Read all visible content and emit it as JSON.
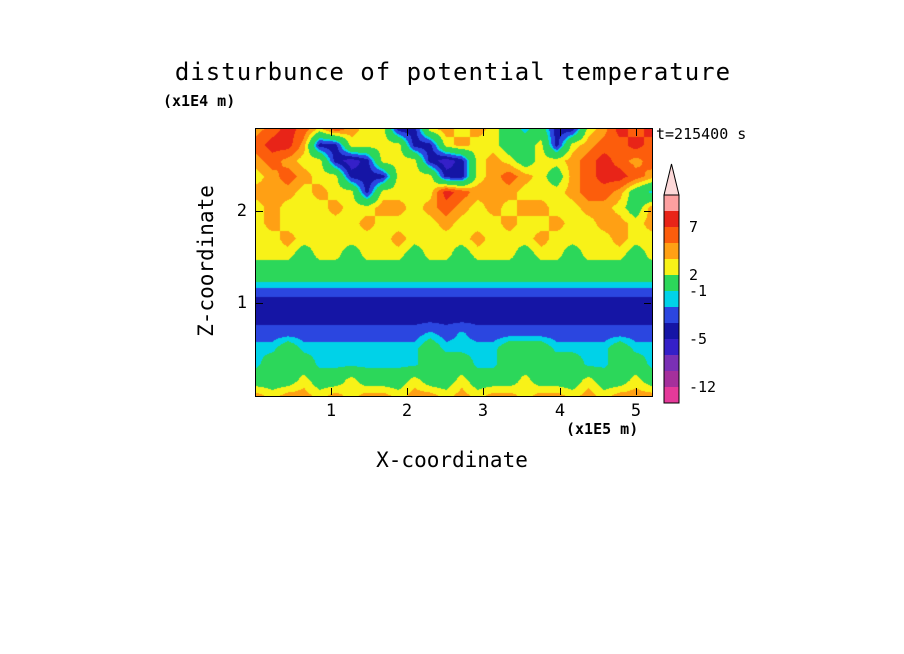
{
  "title": "disturbunce of potential temperature",
  "timestamp": "t=215400 s",
  "axes": {
    "x_label": "X-coordinate",
    "x_unit": "(x1E5 m)",
    "y_label": "Z-coordinate",
    "y_unit": "(x1E4 m)",
    "x_tick_labels": [
      "1",
      "2",
      "3",
      "4",
      "5"
    ],
    "x_tick_values": [
      1,
      2,
      3,
      4,
      5
    ],
    "y_tick_labels": [
      "1",
      "2"
    ],
    "y_tick_values": [
      1,
      2
    ]
  },
  "colorbar": {
    "labeled_levels": [
      7,
      2,
      -1,
      -5,
      -12
    ],
    "tip_color": "#fdd8d8"
  },
  "chart_data": {
    "type": "heatmap",
    "title": "disturbunce of potential temperature",
    "xlabel": "X-coordinate (x1E5 m)",
    "ylabel": "Z-coordinate (x1E4 m)",
    "x_range": [
      0,
      5.2
    ],
    "z_range": [
      0,
      2.9
    ],
    "levels": [
      -12,
      -9,
      -7,
      -5,
      -3.5,
      -2,
      -1,
      2,
      3.5,
      5,
      7,
      9
    ],
    "colors": [
      "#e53a9a",
      "#a5309c",
      "#7a30b5",
      "#3520c8",
      "#1515a5",
      "#2b46e0",
      "#00d2e8",
      "#2cd75a",
      "#f8f218",
      "#ffa014",
      "#fc5d0c",
      "#e82418",
      "#fda0a0"
    ],
    "grid": [
      [
        4.2,
        6,
        8,
        6,
        2.8,
        6,
        4.2,
        2.8,
        2.8,
        -4.3,
        -4.3,
        2.8,
        4.2,
        2.8,
        4.2,
        2.8,
        0.5,
        -1.5,
        0.5,
        -4.3,
        -4.3,
        2.8,
        4.2,
        8,
        6,
        8
      ],
      [
        6,
        8,
        8,
        4.2,
        -4.3,
        -4.3,
        2.8,
        2.8,
        2.8,
        2.8,
        -4.3,
        -4.3,
        2.8,
        4.2,
        2.8,
        2.8,
        0.5,
        0.5,
        2.8,
        -4.3,
        2.8,
        4.2,
        6,
        6,
        8,
        6
      ],
      [
        4.2,
        6,
        4.2,
        2.8,
        2.8,
        -4.3,
        -6,
        -4.3,
        2.8,
        2.8,
        2.8,
        -4.3,
        -6,
        -4.3,
        2.8,
        4.2,
        2.8,
        0.5,
        2.8,
        2.8,
        4.2,
        6,
        8,
        6,
        4.2,
        6
      ],
      [
        2.8,
        4.2,
        6,
        4.2,
        2.8,
        2.8,
        -4.3,
        -4.3,
        -4.3,
        2.8,
        2.8,
        2.8,
        -4.3,
        -4.3,
        2.8,
        4.2,
        6,
        4.2,
        2.8,
        0.5,
        4.2,
        6,
        8,
        8,
        6,
        4.2
      ],
      [
        4.2,
        4.2,
        4.2,
        2.8,
        4.2,
        2.8,
        2.8,
        -4.3,
        2.8,
        2.8,
        2.8,
        2.8,
        8,
        6,
        4.2,
        4.2,
        4.2,
        2.8,
        2.8,
        2.8,
        4.2,
        6,
        6,
        4.2,
        0.5,
        -1.5
      ],
      [
        2.8,
        4.2,
        2.8,
        2.8,
        2.8,
        4.2,
        2.8,
        2.8,
        4.2,
        4.2,
        2.8,
        4.2,
        6,
        4.2,
        2.8,
        4.2,
        2.8,
        4.2,
        4.2,
        2.8,
        2.8,
        4.2,
        4.2,
        2.8,
        0.5,
        4.2
      ],
      [
        2.8,
        4.2,
        2.8,
        2.8,
        2.8,
        2.8,
        2.8,
        4.2,
        2.8,
        2.8,
        2.8,
        2.8,
        4.2,
        2.8,
        2.8,
        2.8,
        4.2,
        2.8,
        2.8,
        4.2,
        2.8,
        2.8,
        4.2,
        4.2,
        2.8,
        4.2
      ],
      [
        2.8,
        2.8,
        4.2,
        2.8,
        2.8,
        2.8,
        2.8,
        2.8,
        2.8,
        4.2,
        2.8,
        2.8,
        2.8,
        2.8,
        4.2,
        2.8,
        2.8,
        2.8,
        4.2,
        2.8,
        2.8,
        2.8,
        2.8,
        4.2,
        2.8,
        2.8
      ],
      [
        2.8,
        2.8,
        2.8,
        0.5,
        2.8,
        2.8,
        0.5,
        2.8,
        2.8,
        2.8,
        0.5,
        2.8,
        2.8,
        0.5,
        2.8,
        2.8,
        2.8,
        0.5,
        2.8,
        2.8,
        0.5,
        2.8,
        2.8,
        2.8,
        0.5,
        2.8
      ],
      [
        0.5,
        0.5,
        0.5,
        0.5,
        0.5,
        0.5,
        0.5,
        0.5,
        0.5,
        0.5,
        0.5,
        0.5,
        0.5,
        0.5,
        0.5,
        0.5,
        0.5,
        0.5,
        0.5,
        0.5,
        0.5,
        0.5,
        0.5,
        0.5,
        0.5,
        0.5
      ],
      [
        -1.6,
        -1.6,
        -1.6,
        -1.6,
        -1.6,
        -1.6,
        -1.6,
        -1.6,
        -1.6,
        -1.6,
        -1.6,
        -1.6,
        -1.6,
        -1.6,
        -1.6,
        -1.6,
        -1.6,
        -1.6,
        -1.6,
        -1.6,
        -1.6,
        -1.6,
        -1.6,
        -1.6,
        -1.6,
        -1.6
      ],
      [
        -4.3,
        -4.3,
        -4.3,
        -4.3,
        -4.3,
        -4.3,
        -4.3,
        -4.3,
        -4.3,
        -4.3,
        -4.3,
        -4.3,
        -4.3,
        -4.3,
        -4.3,
        -4.3,
        -4.3,
        -4.3,
        -4.3,
        -4.3,
        -4.3,
        -4.3,
        -4.3,
        -4.3,
        -4.3,
        -4.3
      ],
      [
        -4.3,
        -4.3,
        -4.3,
        -4.3,
        -4.3,
        -4.3,
        -4.3,
        -4.3,
        -4.3,
        -4.3,
        -4.3,
        -4.3,
        -4.3,
        -4.3,
        -4.3,
        -4.3,
        -4.3,
        -4.3,
        -4.3,
        -4.3,
        -4.3,
        -4.3,
        -4.3,
        -4.3,
        -4.3,
        -4.3
      ],
      [
        -2.7,
        -2.7,
        -2.7,
        -2.7,
        -2.7,
        -2.7,
        -2.7,
        -2.7,
        -2.7,
        -2.7,
        -2.7,
        -1.8,
        -2.7,
        -1.8,
        -2.7,
        -2.7,
        -2.7,
        -2.7,
        -2.7,
        -2.7,
        -2.7,
        -2.7,
        -2.7,
        -2.7,
        -2.7,
        -2.7
      ],
      [
        -1.5,
        -1.5,
        0.5,
        -1.5,
        -1.5,
        -1.5,
        -1.5,
        -1.5,
        -1.5,
        -1.5,
        -1.5,
        0.5,
        -1.5,
        -1.5,
        -1.5,
        -1.5,
        0.5,
        0.5,
        0.5,
        -1.5,
        -1.5,
        -1.5,
        -1.5,
        0.5,
        -1.5,
        -1.5
      ],
      [
        -1.5,
        0.5,
        0.5,
        0.5,
        -1.5,
        -1.5,
        -1.5,
        -1.5,
        -1.5,
        -1.5,
        -1.5,
        0.5,
        0.5,
        0.5,
        -1.5,
        -1.5,
        0.5,
        0.5,
        0.5,
        0.5,
        0.5,
        -1.5,
        -1.5,
        0.5,
        0.5,
        -1.5
      ],
      [
        0.5,
        0.5,
        0.5,
        2.8,
        0.5,
        0.5,
        2.8,
        0.5,
        0.5,
        0.5,
        2.8,
        0.5,
        0.5,
        2.8,
        0.5,
        0.5,
        0.5,
        2.8,
        0.5,
        0.5,
        0.5,
        2.8,
        0.5,
        0.5,
        2.8,
        0.5
      ],
      [
        4.2,
        2.8,
        4.2,
        4.2,
        2.8,
        4.2,
        2.8,
        4.2,
        4.2,
        2.8,
        4.2,
        4.2,
        2.8,
        4.2,
        2.8,
        4.2,
        4.2,
        2.8,
        4.2,
        4.2,
        2.8,
        4.2,
        2.8,
        4.2,
        4.2,
        4.2
      ]
    ]
  }
}
